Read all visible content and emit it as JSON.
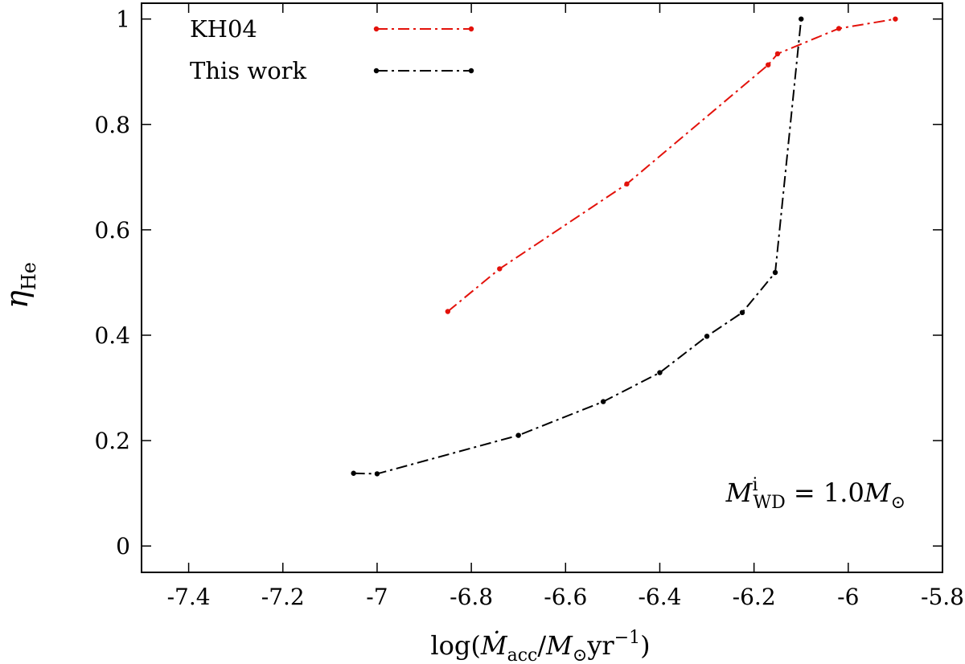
{
  "chart_data": {
    "type": "line",
    "xlabel": "log(Ṁacc/M⊙yr−1)",
    "ylabel": "ηHe",
    "xlim": [
      -7.5,
      -5.8
    ],
    "ylim": [
      -0.05,
      1.03
    ],
    "x_ticks": [
      -7.4,
      -7.2,
      -7.0,
      -6.8,
      -6.6,
      -6.4,
      -6.2,
      -6.0,
      -5.8
    ],
    "x_tick_labels": [
      "-7.4",
      "-7.2",
      "-7",
      "-6.8",
      "-6.6",
      "-6.4",
      "-6.2",
      "-6",
      "-5.8"
    ],
    "y_ticks": [
      0,
      0.2,
      0.4,
      0.6,
      0.8,
      1.0
    ],
    "y_tick_labels": [
      "0",
      "0.2",
      "0.4",
      "0.6",
      "0.8",
      "1"
    ],
    "legend_position": "top-left",
    "annotation": "M^i_WD = 1.0 M⊙",
    "series": [
      {
        "name": "KH04",
        "color": "#e3120b",
        "dash": "dash-dot",
        "x": [
          -6.85,
          -6.74,
          -6.47,
          -6.17,
          -6.15,
          -6.02,
          -5.9
        ],
        "y": [
          0.445,
          0.526,
          0.687,
          0.913,
          0.934,
          0.982,
          1.0
        ]
      },
      {
        "name": "This work",
        "color": "#000000",
        "dash": "dash-dot",
        "x": [
          -7.05,
          -7.0,
          -6.7,
          -6.52,
          -6.4,
          -6.3,
          -6.225,
          -6.155,
          -6.1
        ],
        "y": [
          0.138,
          0.137,
          0.21,
          0.274,
          0.329,
          0.398,
          0.443,
          0.519,
          1.0
        ]
      }
    ]
  }
}
